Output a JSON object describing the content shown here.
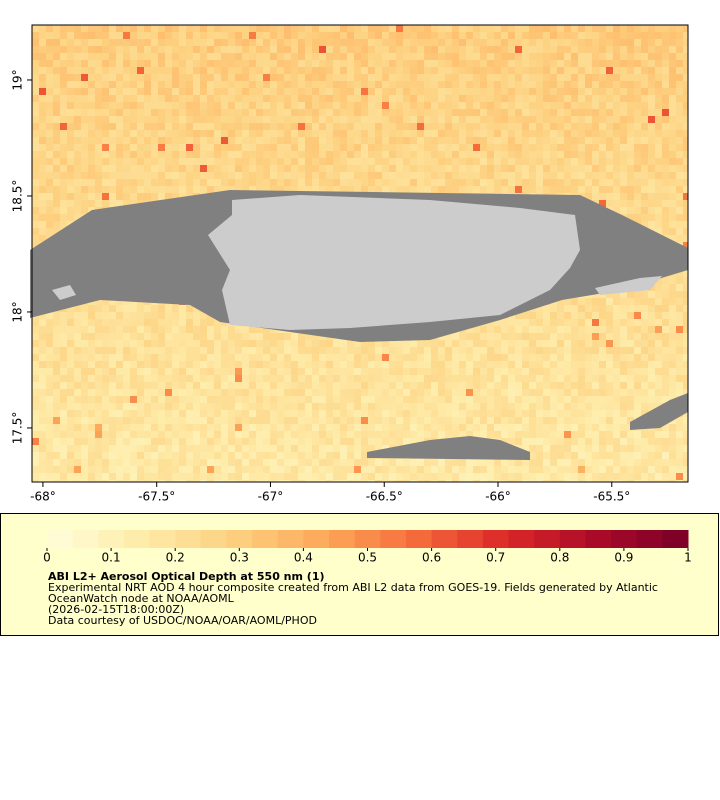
{
  "map": {
    "xlim": [
      -68.048,
      -65.165
    ],
    "ylim": [
      17.267,
      19.237
    ],
    "xticks": [
      {
        "value": -68,
        "label": "-68°"
      },
      {
        "value": -67.5,
        "label": "-67.5°"
      },
      {
        "value": -67,
        "label": "-67°"
      },
      {
        "value": -66.5,
        "label": "-66.5°"
      },
      {
        "value": -66,
        "label": "-66°"
      },
      {
        "value": -65.5,
        "label": "-65.5°"
      }
    ],
    "yticks": [
      {
        "value": 17.5,
        "label": "17.5°"
      },
      {
        "value": 18,
        "label": "18°"
      },
      {
        "value": 18.5,
        "label": "18.5°"
      },
      {
        "value": 19,
        "label": "19°"
      }
    ]
  },
  "legend": {
    "colorbar": {
      "lim": [
        0,
        1
      ],
      "ticks": [
        0,
        0.1,
        0.2,
        0.3,
        0.4,
        0.5,
        0.6,
        0.7,
        0.8,
        0.9,
        1
      ]
    },
    "title": "ABI L2+ Aerosol Optical Depth at 550 nm (1)",
    "lines": [
      "Experimental NRT AOD 4 hour composite created from ABI L2 data from GOES-19. Fields generated by Atlantic",
      "OceanWatch node at NOAA/AOML",
      "(2026-02-15T18:00:00Z)",
      "Data courtesy of USDOC/NOAA/OAR/AOML/PHOD"
    ]
  }
}
